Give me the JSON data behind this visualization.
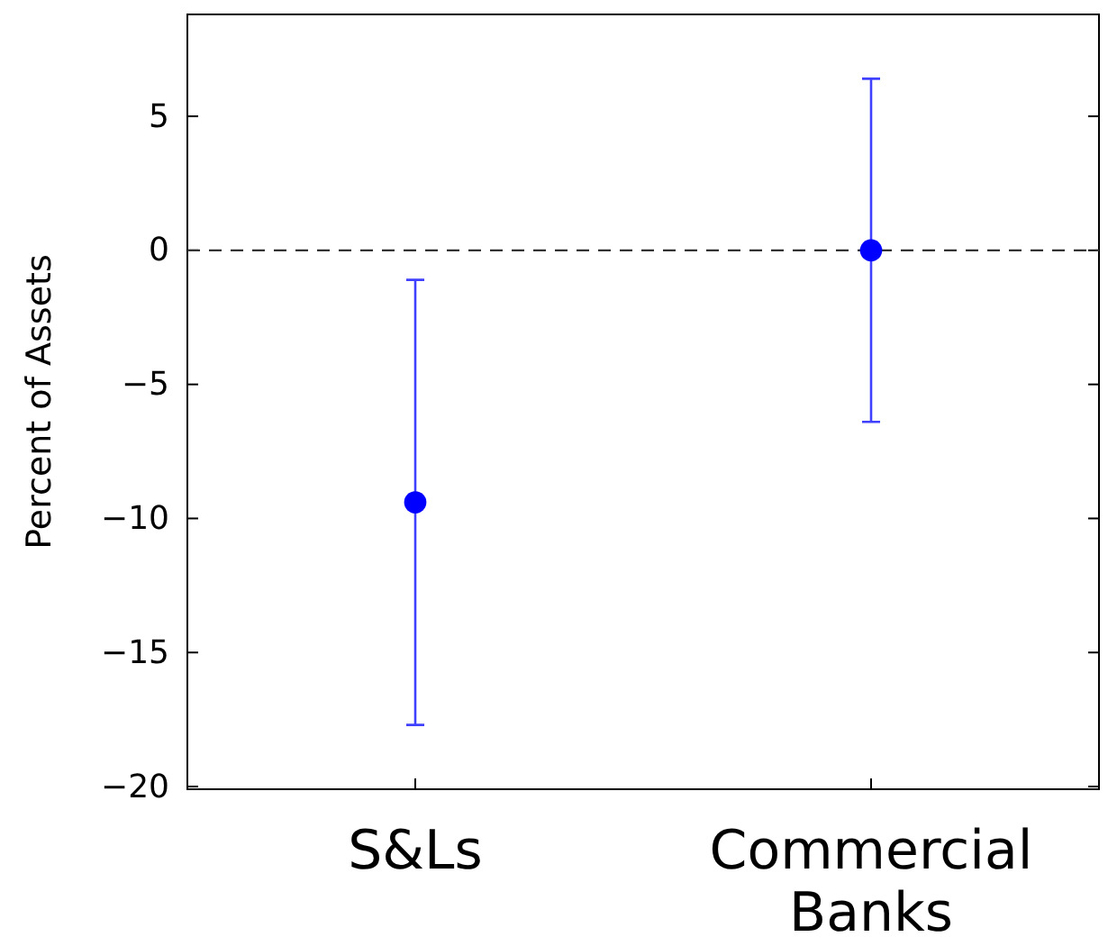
{
  "chart_data": {
    "type": "scatter",
    "ylabel": "Percent of Assets",
    "categories": [
      "S&Ls",
      "Commercial Banks"
    ],
    "series": [
      {
        "color": "#0000ff",
        "values": [
          -9.4,
          0
        ],
        "errors": [
          [
            -17.7,
            -1.1
          ],
          [
            -6.4,
            6.4
          ]
        ]
      }
    ],
    "ylim": [
      -20.1,
      8.8
    ],
    "yticks": [
      -20,
      -15,
      -10,
      -5,
      0,
      5
    ],
    "marker": "circle",
    "grid": false,
    "ref_lines": [
      {
        "axis": "y",
        "value": 0,
        "line_style": "dashed",
        "color": "#333333"
      }
    ]
  }
}
